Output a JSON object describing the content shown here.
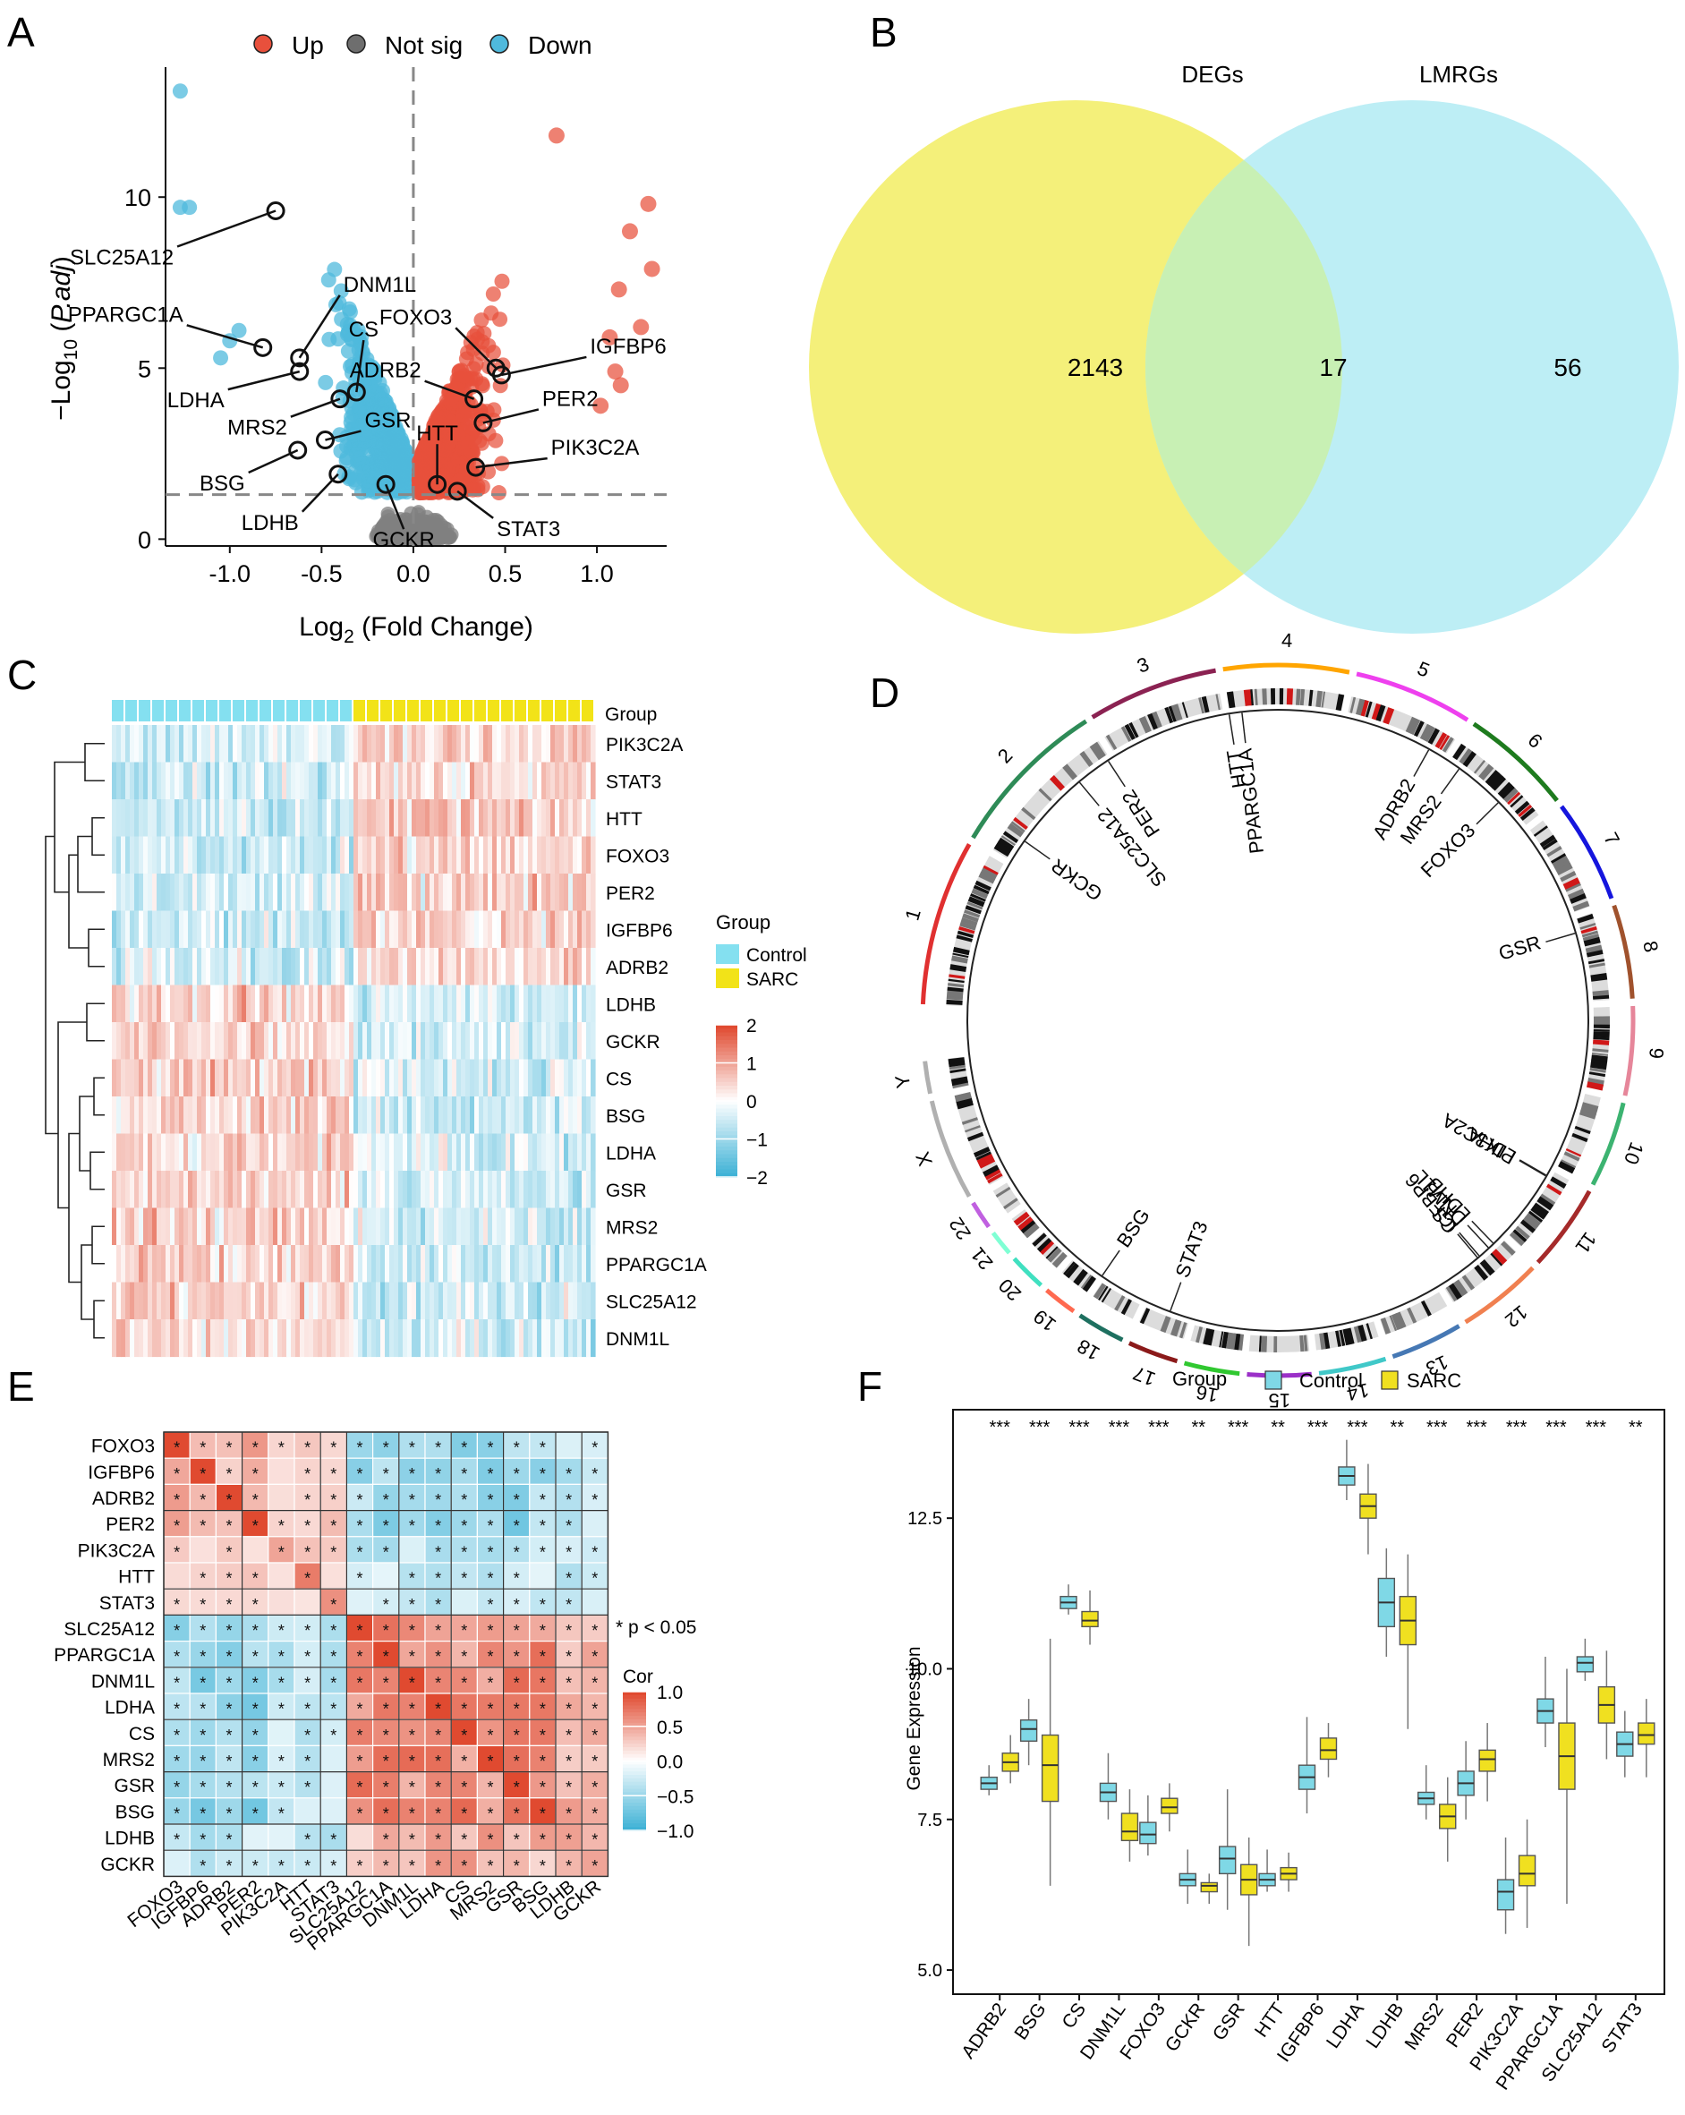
{
  "figure": {
    "panel_labels": [
      "A",
      "B",
      "C",
      "D",
      "E",
      "F"
    ]
  },
  "chart_data": [
    {
      "panel": "A",
      "type": "scatter",
      "title": "",
      "xlabel": "Log2 (Fold Change)",
      "ylabel": "-Log10 (P.adj)",
      "xlim": [
        -1.35,
        1.38
      ],
      "ylim": [
        -0.2,
        13.8
      ],
      "xticks": [
        "-1.0",
        "-0.5",
        "0.0",
        "0.5",
        "1.0"
      ],
      "xtick_values": [
        -1.0,
        -0.5,
        0.0,
        0.5,
        1.0
      ],
      "yticks": [
        "0",
        "5",
        "10"
      ],
      "ytick_values": [
        0,
        5,
        10
      ],
      "threshold_y": 1.3,
      "threshold_x": 0,
      "legend": [
        {
          "label": "Up",
          "color": "#e8503c"
        },
        {
          "label": "Not sig",
          "color": "#6e6e6e"
        },
        {
          "label": "Down",
          "color": "#4fb9dc"
        }
      ],
      "colors": {
        "up": "#e8503c",
        "notsig": "#808080",
        "down": "#4fb9dc"
      },
      "labeled_genes": [
        {
          "gene": "SLC25A12",
          "x": -0.75,
          "y": 9.6
        },
        {
          "gene": "DNM1L",
          "x": -0.62,
          "y": 5.3
        },
        {
          "gene": "PPARGC1A",
          "x": -0.82,
          "y": 5.6
        },
        {
          "gene": "CS",
          "x": -0.31,
          "y": 4.3
        },
        {
          "gene": "LDHA",
          "x": -0.62,
          "y": 4.9
        },
        {
          "gene": "MRS2",
          "x": -0.4,
          "y": 4.1
        },
        {
          "gene": "GSR",
          "x": -0.48,
          "y": 2.9
        },
        {
          "gene": "BSG",
          "x": -0.63,
          "y": 2.6
        },
        {
          "gene": "LDHB",
          "x": -0.41,
          "y": 1.9
        },
        {
          "gene": "GCKR",
          "x": -0.15,
          "y": 1.6
        },
        {
          "gene": "FOXO3",
          "x": 0.45,
          "y": 5.0
        },
        {
          "gene": "IGFBP6",
          "x": 0.48,
          "y": 4.8
        },
        {
          "gene": "ADRB2",
          "x": 0.33,
          "y": 4.1
        },
        {
          "gene": "PER2",
          "x": 0.38,
          "y": 3.4
        },
        {
          "gene": "PIK3C2A",
          "x": 0.34,
          "y": 2.1
        },
        {
          "gene": "HTT",
          "x": 0.13,
          "y": 1.6
        },
        {
          "gene": "STAT3",
          "x": 0.24,
          "y": 1.4
        }
      ]
    },
    {
      "panel": "B",
      "type": "venn",
      "sets": [
        {
          "name": "DEGs",
          "color": "#f4f07a"
        },
        {
          "name": "LMRGs",
          "color": "#bdeef5"
        }
      ],
      "counts": {
        "DEGs_only": "2143",
        "overlap": "17",
        "LMRGs_only": "56"
      },
      "overlap_color": "#c8f0b4"
    },
    {
      "panel": "C",
      "type": "heatmap",
      "group_label": "Group",
      "legend_title": "Group",
      "groups": [
        {
          "name": "Control",
          "color": "#84e0f0",
          "n": 18
        },
        {
          "name": "SARC",
          "color": "#f2e318",
          "n": 18
        }
      ],
      "genes": [
        "PIK3C2A",
        "STAT3",
        "HTT",
        "FOXO3",
        "PER2",
        "IGFBP6",
        "ADRB2",
        "LDHB",
        "GCKR",
        "CS",
        "BSG",
        "LDHA",
        "GSR",
        "MRS2",
        "PPARGC1A",
        "SLC25A12",
        "DNM1L"
      ],
      "upregulated_in_sarc": [
        "PIK3C2A",
        "STAT3",
        "HTT",
        "FOXO3",
        "PER2",
        "IGFBP6",
        "ADRB2"
      ],
      "scale_ticks": [
        "2",
        "1",
        "0",
        "−1",
        "−2"
      ],
      "scale_values": [
        2,
        1,
        0,
        -1,
        -2
      ],
      "scale_colors": {
        "low": "#3fb2d6",
        "mid": "#ffffff",
        "high": "#e04a30"
      }
    },
    {
      "panel": "D",
      "type": "circos",
      "chromosomes": [
        "1",
        "2",
        "3",
        "4",
        "5",
        "6",
        "7",
        "8",
        "9",
        "10",
        "11",
        "12",
        "13",
        "14",
        "15",
        "16",
        "17",
        "18",
        "19",
        "20",
        "21",
        "22",
        "X",
        "Y"
      ],
      "chromosome_colors": [
        "#e03030",
        "#2e8b57",
        "#8b2252",
        "#ffa500",
        "#ee40ee",
        "#1e7b1e",
        "#1515dd",
        "#a0522d",
        "#e6869a",
        "#3cb371",
        "#a52a2a",
        "#f08050",
        "#4678b4",
        "#40c8c8",
        "#9b30c8",
        "#30c830",
        "#8b1a1a",
        "#1e7060",
        "#ff6a50",
        "#40e0c0",
        "#7fffd4",
        "#c060e0",
        "#b0b0b0",
        "#b0b0b0"
      ],
      "gene_labels": [
        {
          "gene": "GCKR",
          "chrom": "2"
        },
        {
          "gene": "SLC25A12",
          "chrom": "2"
        },
        {
          "gene": "PER2",
          "chrom": "2"
        },
        {
          "gene": "HTT",
          "chrom": "4"
        },
        {
          "gene": "PPARGC1A",
          "chrom": "4"
        },
        {
          "gene": "ADRB2",
          "chrom": "5"
        },
        {
          "gene": "MRS2",
          "chrom": "6"
        },
        {
          "gene": "FOXO3",
          "chrom": "6"
        },
        {
          "gene": "GSR",
          "chrom": "8"
        },
        {
          "gene": "LDHA",
          "chrom": "11"
        },
        {
          "gene": "PIK3C2A",
          "chrom": "11"
        },
        {
          "gene": "CS",
          "chrom": "12"
        },
        {
          "gene": "IGFBP6",
          "chrom": "12"
        },
        {
          "gene": "DNM1L",
          "chrom": "12"
        },
        {
          "gene": "LDHB",
          "chrom": "12"
        },
        {
          "gene": "STAT3",
          "chrom": "17"
        },
        {
          "gene": "BSG",
          "chrom": "19"
        }
      ]
    },
    {
      "panel": "E",
      "type": "correlation-heatmap",
      "genes": [
        "FOXO3",
        "IGFBP6",
        "ADRB2",
        "PER2",
        "PIK3C2A",
        "HTT",
        "STAT3",
        "SLC25A12",
        "PPARGC1A",
        "DNM1L",
        "LDHA",
        "CS",
        "MRS2",
        "GSR",
        "BSG",
        "LDHB",
        "GCKR"
      ],
      "cluster_a": [
        "FOXO3",
        "IGFBP6",
        "ADRB2",
        "PER2",
        "PIK3C2A",
        "HTT",
        "STAT3"
      ],
      "cluster_b": [
        "SLC25A12",
        "PPARGC1A",
        "DNM1L",
        "LDHA",
        "CS",
        "MRS2",
        "GSR",
        "BSG",
        "LDHB",
        "GCKR"
      ],
      "annotation": "* p < 0.05",
      "legend_title": "Cor",
      "scale_ticks": [
        "1.0",
        "0.5",
        "0.0",
        "−0.5",
        "−1.0"
      ],
      "scale_values": [
        1.0,
        0.5,
        0.0,
        -0.5,
        -1.0
      ],
      "scale_colors": {
        "low": "#3fb2d6",
        "mid": "#ffffff",
        "high": "#e04a30"
      }
    },
    {
      "panel": "F",
      "type": "box",
      "legend_title": "Group",
      "groups": [
        {
          "name": "Control",
          "color": "#7fd8e6"
        },
        {
          "name": "SARC",
          "color": "#f0e020"
        }
      ],
      "xlabel": "",
      "ylabel": "Gene Expression",
      "ylim": [
        4.6,
        14.3
      ],
      "yticks": [
        "5.0",
        "7.5",
        "10.0",
        "12.5"
      ],
      "ytick_values": [
        5.0,
        7.5,
        10.0,
        12.5
      ],
      "categories": [
        "ADRB2",
        "BSG",
        "CS",
        "DNM1L",
        "FOXO3",
        "GCKR",
        "GSR",
        "HTT",
        "IGFBP6",
        "LDHA",
        "LDHB",
        "MRS2",
        "PER2",
        "PIK3C2A",
        "PPARGC1A",
        "SLC25A12",
        "STAT3"
      ],
      "significance": [
        "***",
        "***",
        "***",
        "***",
        "***",
        "**",
        "***",
        "**",
        "***",
        "***",
        "**",
        "***",
        "***",
        "***",
        "***",
        "***",
        "**"
      ],
      "series": [
        {
          "name": "Control",
          "stats": [
            [
              7.9,
              8.0,
              8.1,
              8.2,
              8.4
            ],
            [
              8.4,
              8.8,
              9.0,
              9.15,
              9.5
            ],
            [
              10.9,
              11.0,
              11.1,
              11.2,
              11.4
            ],
            [
              7.5,
              7.8,
              7.95,
              8.1,
              8.6
            ],
            [
              6.9,
              7.1,
              7.25,
              7.45,
              7.9
            ],
            [
              6.1,
              6.4,
              6.5,
              6.6,
              7.0
            ],
            [
              6.0,
              6.6,
              6.85,
              7.05,
              8.0
            ],
            [
              6.3,
              6.4,
              6.5,
              6.6,
              7.0
            ],
            [
              7.6,
              8.0,
              8.2,
              8.4,
              9.2
            ],
            [
              12.8,
              13.05,
              13.2,
              13.35,
              13.8
            ],
            [
              10.2,
              10.7,
              11.1,
              11.5,
              12.0
            ],
            [
              7.5,
              7.75,
              7.85,
              7.95,
              8.4
            ],
            [
              7.5,
              7.9,
              8.1,
              8.3,
              8.8
            ],
            [
              5.6,
              6.0,
              6.3,
              6.5,
              7.2
            ],
            [
              8.7,
              9.1,
              9.3,
              9.5,
              10.2
            ],
            [
              9.8,
              9.95,
              10.1,
              10.2,
              10.5
            ],
            [
              8.2,
              8.55,
              8.75,
              8.95,
              9.3
            ]
          ]
        },
        {
          "name": "SARC",
          "stats": [
            [
              8.1,
              8.3,
              8.45,
              8.6,
              8.9
            ],
            [
              6.4,
              7.8,
              8.4,
              8.9,
              10.5
            ],
            [
              10.4,
              10.7,
              10.8,
              10.95,
              11.3
            ],
            [
              6.8,
              7.15,
              7.3,
              7.6,
              8.0
            ],
            [
              7.3,
              7.6,
              7.7,
              7.85,
              8.1
            ],
            [
              6.1,
              6.3,
              6.4,
              6.45,
              6.6
            ],
            [
              5.4,
              6.25,
              6.5,
              6.75,
              7.2
            ],
            [
              6.3,
              6.5,
              6.6,
              6.7,
              6.95
            ],
            [
              8.2,
              8.5,
              8.65,
              8.85,
              9.1
            ],
            [
              11.9,
              12.5,
              12.7,
              12.9,
              13.4
            ],
            [
              9.0,
              10.4,
              10.8,
              11.2,
              11.9
            ],
            [
              6.8,
              7.35,
              7.55,
              7.75,
              8.2
            ],
            [
              7.8,
              8.3,
              8.5,
              8.65,
              9.1
            ],
            [
              5.7,
              6.4,
              6.6,
              6.9,
              7.5
            ],
            [
              6.1,
              8.0,
              8.55,
              9.1,
              10.0
            ],
            [
              8.5,
              9.1,
              9.4,
              9.7,
              10.3
            ],
            [
              8.2,
              8.75,
              8.9,
              9.1,
              9.5
            ]
          ]
        }
      ]
    }
  ]
}
